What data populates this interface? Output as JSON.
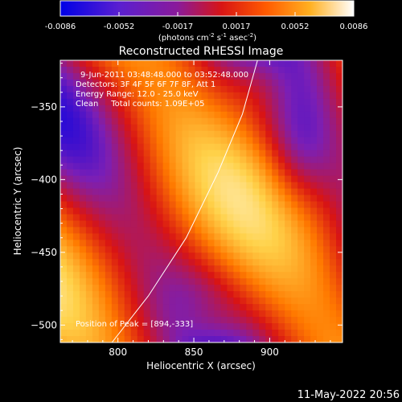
{
  "colorbar": {
    "ticks": [
      "-0.0086",
      "-0.0052",
      "-0.0017",
      "0.0017",
      "0.0052",
      "0.0086"
    ],
    "unit": {
      "base": "(photons cm",
      "sup1": "-2",
      "mid": " s",
      "sup2": "-1",
      "mid2": " asec",
      "sup3": "-2",
      "end": ")"
    }
  },
  "chart_data": {
    "type": "heatmap",
    "title": "Reconstructed RHESSI Image",
    "xlabel": "Heliocentric X (arcsec)",
    "ylabel": "Heliocentric Y (arcsec)",
    "xlim": [
      762,
      948
    ],
    "ylim": [
      -512,
      -318
    ],
    "xticks": [
      800,
      850,
      900
    ],
    "yticks": [
      -350,
      -400,
      -450,
      -500
    ],
    "value_range": [
      -0.0086,
      0.0086
    ],
    "colormap": [
      "#0000e6",
      "#7a1fb6",
      "#d81414",
      "#ff7a00",
      "#ffd24a",
      "#ffffff"
    ],
    "annotations": [
      "9-Jun-2011 03:48:48.000 to 03:52:48.000",
      "Detectors: 3F 4F 5F 6F 7F 8F, Att 1",
      "Energy Range: 12.0 - 25.0 keV",
      "Clean     Total counts: 1.09E+05"
    ],
    "peak_label": "Position of Peak = [894,-333]",
    "peak": [
      894,
      -333
    ],
    "limb_curve": [
      [
        796,
        -512
      ],
      [
        820,
        -480
      ],
      [
        845,
        -440
      ],
      [
        866,
        -395
      ],
      [
        882,
        -355
      ],
      [
        892,
        -318
      ]
    ]
  },
  "footer": {
    "timestamp": "11-May-2022 20:56"
  }
}
